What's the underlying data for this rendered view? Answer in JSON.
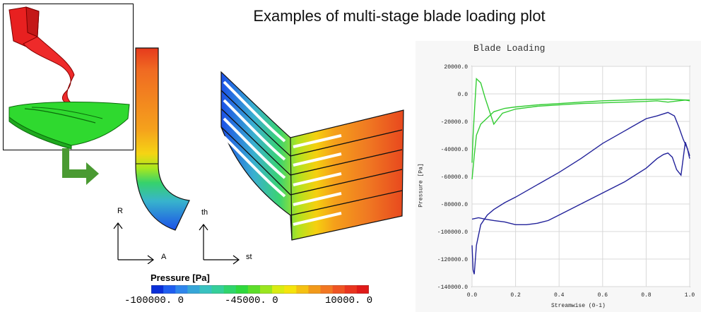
{
  "page_title": "Examples of multi-stage blade loading plot",
  "axes": {
    "meridional": {
      "vertical": "R",
      "horizontal": "A"
    },
    "blade_to_blade": {
      "vertical": "th",
      "horizontal": "st"
    }
  },
  "colorbar": {
    "title": "Pressure [Pa]",
    "ticks": [
      "-100000. 0",
      "-45000. 0",
      "10000. 0"
    ],
    "colors": [
      "#0a2fd8",
      "#1f5ef0",
      "#2f86ec",
      "#36a6d8",
      "#39c2c0",
      "#35cf9a",
      "#2fd56c",
      "#2fd93d",
      "#5cde2a",
      "#9be61e",
      "#d9ec12",
      "#f5e40c",
      "#f5c112",
      "#f29a1a",
      "#f27722",
      "#ef5422",
      "#e9351e",
      "#e01a18"
    ]
  },
  "chart_data": {
    "type": "line",
    "title": "Blade Loading",
    "xlabel": "Streamwise (0-1)",
    "ylabel": "Pressure [Pa]",
    "xlim": [
      0.0,
      1.0
    ],
    "ylim": [
      -140000,
      20000
    ],
    "xticks": [
      "0.0",
      "0.2",
      "0.4",
      "0.6",
      "0.8",
      "1.0"
    ],
    "yticks": [
      "20000.0",
      "0.0",
      "-20000.0",
      "-40000.0",
      "-60000.0",
      "-80000.0",
      "-100000.0",
      "-120000.0",
      "-140000.0"
    ],
    "grid": true,
    "series": [
      {
        "color": "#33cc33",
        "x": [
          0.0,
          0.005,
          0.012,
          0.02,
          0.04,
          0.06,
          0.1,
          0.14,
          0.2,
          0.3,
          0.4,
          0.5,
          0.6,
          0.7,
          0.8,
          0.85,
          0.9,
          0.95,
          0.98,
          1.0
        ],
        "y": [
          -50000,
          -30000,
          -10000,
          11000,
          8000,
          -3000,
          -22000,
          -14000,
          -11000,
          -9000,
          -8000,
          -7000,
          -6500,
          -6000,
          -5500,
          -5000,
          -6000,
          -5000,
          -4500,
          -5000
        ]
      },
      {
        "color": "#33cc33",
        "x": [
          0.0,
          0.01,
          0.02,
          0.04,
          0.06,
          0.08,
          0.1,
          0.15,
          0.2,
          0.3,
          0.4,
          0.5,
          0.6,
          0.7,
          0.8,
          0.9,
          0.95,
          1.0
        ],
        "y": [
          -62000,
          -45000,
          -30000,
          -22000,
          -19000,
          -16000,
          -13000,
          -10500,
          -9500,
          -8000,
          -7000,
          -6000,
          -5000,
          -4500,
          -4000,
          -3800,
          -4200,
          -4500
        ]
      },
      {
        "color": "#22229a",
        "x": [
          0.0,
          0.005,
          0.01,
          0.02,
          0.04,
          0.07,
          0.1,
          0.15,
          0.2,
          0.3,
          0.4,
          0.5,
          0.6,
          0.7,
          0.8,
          0.85,
          0.9,
          0.93,
          0.95,
          0.97,
          0.99,
          1.0
        ],
        "y": [
          -110000,
          -128000,
          -131000,
          -110000,
          -95000,
          -88000,
          -84000,
          -79000,
          -75000,
          -66000,
          -57000,
          -47000,
          -36000,
          -27000,
          -18000,
          -16000,
          -13500,
          -16000,
          -24000,
          -33000,
          -40000,
          -47000
        ]
      },
      {
        "color": "#22229a",
        "x": [
          0.0,
          0.03,
          0.06,
          0.1,
          0.15,
          0.2,
          0.25,
          0.3,
          0.35,
          0.4,
          0.5,
          0.6,
          0.7,
          0.8,
          0.85,
          0.88,
          0.9,
          0.92,
          0.94,
          0.96,
          0.98,
          1.0
        ],
        "y": [
          -91000,
          -90000,
          -91000,
          -92000,
          -93000,
          -95000,
          -95000,
          -94000,
          -92000,
          -88000,
          -80000,
          -72000,
          -64000,
          -54000,
          -47000,
          -44000,
          -43000,
          -46000,
          -55000,
          -59000,
          -35000,
          -45000
        ]
      }
    ]
  }
}
